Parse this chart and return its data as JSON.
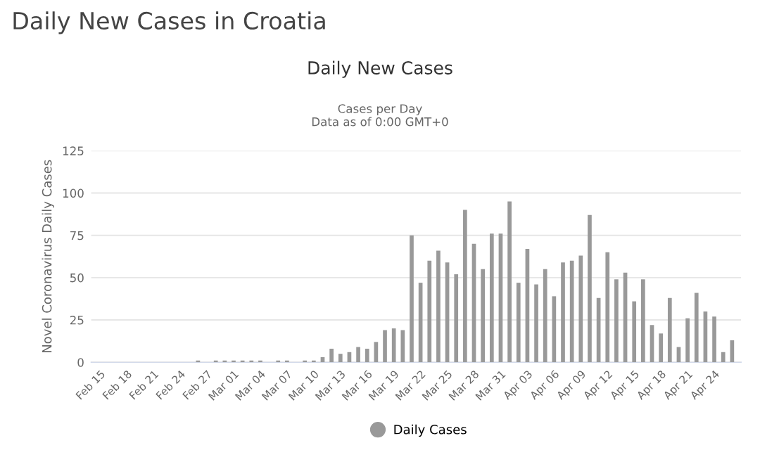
{
  "chart_data": {
    "type": "bar",
    "title": "Daily New Cases",
    "subtitle": "Cases per Day\nData as of 0:00 GMT+0",
    "annotations": [
      "Daily New Cases in Croatia"
    ],
    "ylabel": "Novel Coronavirus Daily Cases",
    "categories": [
      "Feb 15",
      null,
      null,
      "Feb 18",
      null,
      null,
      "Feb 21",
      null,
      null,
      "Feb 24",
      null,
      null,
      "Feb 27",
      null,
      null,
      "Mar 01",
      null,
      null,
      "Mar 04",
      null,
      null,
      "Mar 07",
      null,
      null,
      "Mar 10",
      null,
      null,
      "Mar 13",
      null,
      null,
      "Mar 16",
      null,
      null,
      "Mar 19",
      null,
      null,
      "Mar 22",
      null,
      null,
      "Mar 25",
      null,
      null,
      "Mar 28",
      null,
      null,
      "Mar 31",
      null,
      null,
      "Apr 03",
      null,
      null,
      "Apr 06",
      null,
      null,
      "Apr 09",
      null,
      null,
      "Apr 12",
      null,
      null,
      "Apr 15",
      null,
      null,
      "Apr 18",
      null,
      null,
      "Apr 21",
      null,
      null,
      "Apr 24",
      null,
      null
    ],
    "series": [
      {
        "name": "Daily Cases",
        "color": "#999999",
        "values": [
          0,
          0,
          0,
          0,
          0,
          0,
          0,
          0,
          0,
          0,
          0,
          1,
          0,
          1,
          1,
          1,
          1,
          1,
          1,
          0,
          1,
          1,
          0,
          1,
          1,
          3,
          8,
          5,
          6,
          9,
          8,
          12,
          19,
          20,
          19,
          75,
          47,
          60,
          66,
          59,
          52,
          90,
          70,
          55,
          76,
          76,
          95,
          47,
          67,
          46,
          55,
          39,
          59,
          60,
          63,
          87,
          38,
          65,
          49,
          53,
          36,
          49,
          22,
          17,
          38,
          9,
          26,
          41,
          30,
          27,
          6,
          13
        ]
      }
    ],
    "ylim": [
      0,
      125
    ],
    "yticks": [
      0,
      25,
      50,
      75,
      100,
      125
    ],
    "grid": "y",
    "legend": "bottom"
  }
}
